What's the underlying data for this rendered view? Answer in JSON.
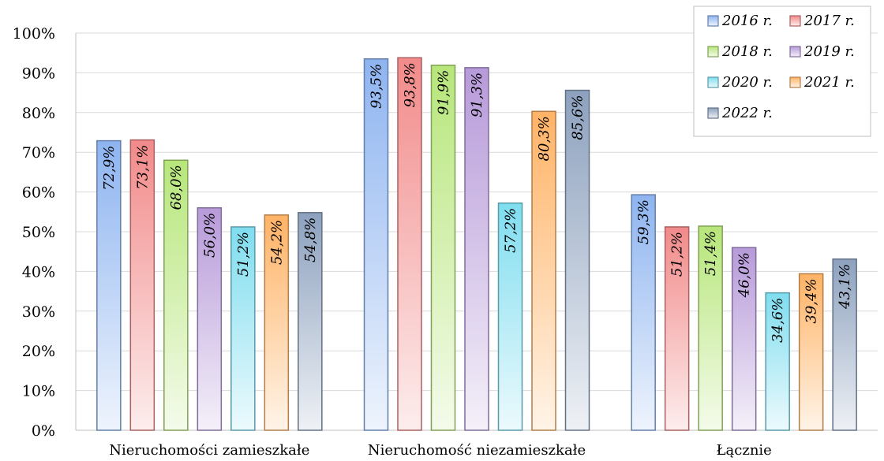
{
  "chart_data": {
    "type": "bar",
    "categories": [
      "Nieruchomości zamieszkałe",
      "Nieruchomość niezamieszkałe",
      "Łącznie"
    ],
    "series": [
      {
        "name": "2016 r.",
        "color": "#8EB4F0",
        "values": [
          72.9,
          93.5,
          59.3
        ],
        "labels": [
          "72,9%",
          "93,5%",
          "59,3%"
        ]
      },
      {
        "name": "2017 r.",
        "color": "#F28A8A",
        "values": [
          73.1,
          93.8,
          51.2
        ],
        "labels": [
          "73,1%",
          "93,8%",
          "51,2%"
        ]
      },
      {
        "name": "2018 r.",
        "color": "#B7E67A",
        "values": [
          68.0,
          91.9,
          51.4
        ],
        "labels": [
          "68,0%",
          "91,9%",
          "51,4%"
        ]
      },
      {
        "name": "2019 r.",
        "color": "#B79AD9",
        "values": [
          56.0,
          91.3,
          46.0
        ],
        "labels": [
          "56,0%",
          "91,3%",
          "46,0%"
        ]
      },
      {
        "name": "2020 r.",
        "color": "#7FDDEF",
        "values": [
          51.2,
          57.2,
          34.6
        ],
        "labels": [
          "51,2%",
          "57,2%",
          "34,6%"
        ]
      },
      {
        "name": "2021 r.",
        "color": "#FFB366",
        "values": [
          54.2,
          80.3,
          39.4
        ],
        "labels": [
          "54,2%",
          "80,3%",
          "39,4%"
        ]
      },
      {
        "name": "2022 r.",
        "color": "#8DA1BE",
        "values": [
          54.8,
          85.6,
          43.1
        ],
        "labels": [
          "54,8%",
          "85,6%",
          "43,1%"
        ]
      }
    ],
    "y_ticks": [
      "0%",
      "10%",
      "20%",
      "30%",
      "40%",
      "50%",
      "60%",
      "70%",
      "80%",
      "90%",
      "100%"
    ],
    "ylim": [
      0,
      100
    ],
    "title": "",
    "xlabel": "",
    "ylabel": "",
    "grid": true,
    "legend_position": "top-right"
  }
}
